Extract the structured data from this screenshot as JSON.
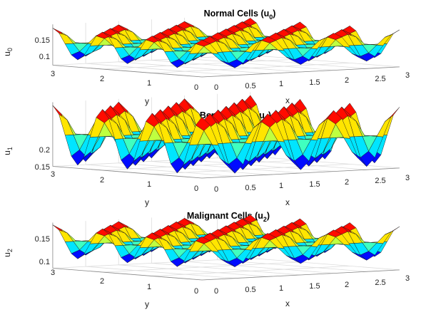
{
  "chart_data": [
    {
      "type": "surface",
      "title": "Normal Cells (u",
      "title_sub": "0",
      "title_end": ")",
      "xlabel": "x",
      "ylabel": "y",
      "zlabel": "u",
      "zlabel_sub": "0",
      "xticks": [
        "0",
        "0.5",
        "1",
        "1.5",
        "2",
        "2.5",
        "3"
      ],
      "yticks": [
        "3",
        "2",
        "1",
        "0"
      ],
      "zticks": [
        "0.15",
        "0.1"
      ],
      "xlim": [
        0,
        3
      ],
      "ylim": [
        0,
        3
      ],
      "zlim": [
        0.06,
        0.17
      ],
      "surface": {
        "mean": 0.12,
        "amplitude": 0.04,
        "x_frequency": 2,
        "y_frequency": 2
      },
      "colormap": "jet",
      "grid": true
    },
    {
      "type": "surface",
      "title": "Benign Cells (u",
      "title_sub": "1",
      "title_end": ")",
      "xlabel": "x",
      "ylabel": "y",
      "zlabel": "u",
      "zlabel_sub": "1",
      "xticks": [
        "0",
        "0.5",
        "1",
        "1.5",
        "2",
        "2.5",
        "3"
      ],
      "yticks": [
        "3",
        "2",
        "1",
        "0"
      ],
      "zticks": [
        "0.2",
        "0.15"
      ],
      "xlim": [
        0,
        3
      ],
      "ylim": [
        0,
        3
      ],
      "zlim": [
        0.14,
        0.24
      ],
      "surface": {
        "mean": 0.19,
        "amplitude": 0.045,
        "x_frequency": 2,
        "y_frequency": 2
      },
      "colormap": "jet",
      "grid": true
    },
    {
      "type": "surface",
      "title": "Malignant Cells (u",
      "title_sub": "2",
      "title_end": ")",
      "xlabel": "x",
      "ylabel": "y",
      "zlabel": "u",
      "zlabel_sub": "2",
      "xticks": [
        "0",
        "0.5",
        "1",
        "1.5",
        "2",
        "2.5",
        "3"
      ],
      "yticks": [
        "3",
        "2",
        "1",
        "0"
      ],
      "zticks": [
        "0.15",
        "0.1"
      ],
      "xlim": [
        0,
        3
      ],
      "ylim": [
        0,
        3
      ],
      "zlim": [
        0.06,
        0.16
      ],
      "surface": {
        "mean": 0.12,
        "amplitude": 0.035,
        "x_frequency": 2,
        "y_frequency": 2
      },
      "colormap": "jet",
      "grid": true
    }
  ],
  "colors": {
    "edge": "#1a1a1a",
    "grid": "#dcdcdc",
    "axis": "#8a8a8a"
  }
}
